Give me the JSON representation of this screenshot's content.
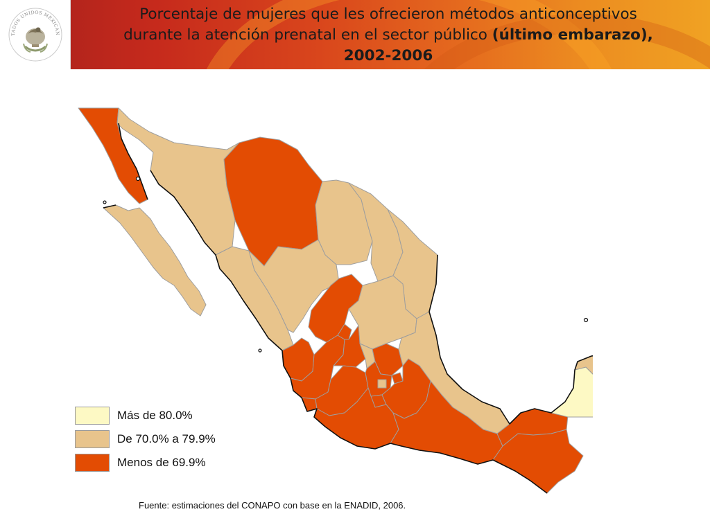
{
  "header": {
    "title_part1": "Porcentaje de mujeres que les ofrecieron métodos anticonceptivos",
    "title_part2": "durante la atención prenatal en el sector público",
    "title_bold1": "(último embarazo),",
    "title_bold2": "2002-2006",
    "seal_text": "ESTADOS UNIDOS MEXICANOS"
  },
  "legend": {
    "items": [
      {
        "label": "Más de 80.0%",
        "color": "#fdf9c4"
      },
      {
        "label": "De 70.0% a 79.9%",
        "color": "#e8c48c"
      },
      {
        "label": "Menos de 69.9%",
        "color": "#e34c03"
      }
    ]
  },
  "regions": {
    "baja_california": "Menos de 69.9%",
    "baja_california_sur": "De 70.0% a 79.9%",
    "sonora": "De 70.0% a 79.9%",
    "chihuahua": "Menos de 69.9%",
    "coahuila": "De 70.0% a 79.9%",
    "nuevo_leon": "De 70.0% a 79.9%",
    "tamaulipas": "De 70.0% a 79.9%",
    "sinaloa": "De 70.0% a 79.9%",
    "durango": "De 70.0% a 79.9%",
    "zacatecas": "Menos de 69.9%",
    "san_luis_potosi": "De 70.0% a 79.9%",
    "nayarit": "Menos de 69.9%",
    "jalisco": "Menos de 69.9%",
    "aguascalientes": "Menos de 69.9%",
    "guanajuato": "Menos de 69.9%",
    "queretaro": "De 70.0% a 79.9%",
    "hidalgo": "Menos de 69.9%",
    "veracruz": "De 70.0% a 79.9%",
    "colima": "Menos de 69.9%",
    "michoacan": "Menos de 69.9%",
    "mexico": "Menos de 69.9%",
    "distrito_federal": "De 70.0% a 79.9%",
    "tlaxcala": "Menos de 69.9%",
    "puebla": "Menos de 69.9%",
    "morelos": "Menos de 69.9%",
    "guerrero": "Menos de 69.9%",
    "oaxaca": "Menos de 69.9%",
    "tabasco": "Menos de 69.9%",
    "chiapas": "Menos de 69.9%",
    "campeche": "Más de 80.0%",
    "yucatan": "De 70.0% a 79.9%",
    "quintana_roo": "De 70.0% a 79.9%"
  },
  "source": "Fuente: estimaciones del CONAPO con base en la ENADID, 2006."
}
